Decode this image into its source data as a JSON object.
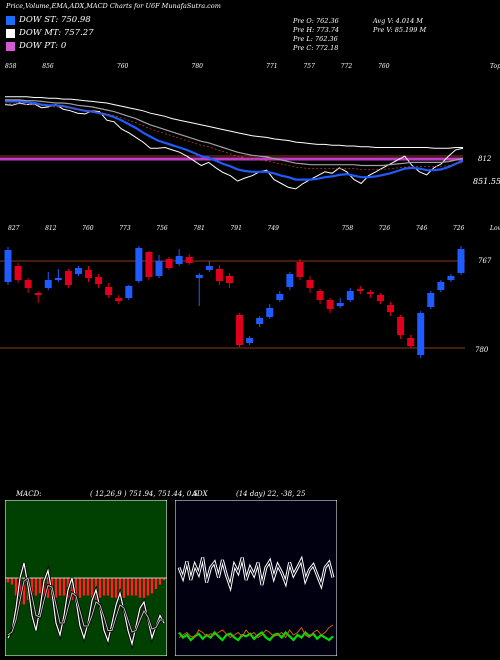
{
  "header": {
    "title": "Price,Volume,EMA,ADX,MACD Charts for U6F MunafaSutra.com"
  },
  "legend": [
    {
      "label": "DOW ST: 750.98",
      "color": "#1a6cff"
    },
    {
      "label": "DOW MT: 757.27",
      "color": "#ffffff"
    },
    {
      "label": "DOW PT: 0",
      "color": "#d45ad4"
    }
  ],
  "ohlc": {
    "open": "Pre  O: 762.36",
    "high": "Pre  H: 773.74",
    "low": "Pre  L: 762.36",
    "close": "Pre  C: 772.18",
    "avg_vol": "Avg V: 4.014  M",
    "pre_vol": "Pre  V: 85.199 M"
  },
  "colors": {
    "up": "#1f5bff",
    "down": "#e0001c",
    "purple": "#c43cc4",
    "brown": "#8b3a1a",
    "green": "#00c400"
  },
  "chart_data": [
    {
      "type": "line",
      "name": "price-ema-panel",
      "top_labels": [
        "858",
        "856",
        "",
        "760",
        "",
        "780",
        "",
        "771",
        "757",
        "772",
        "760",
        "",
        "",
        "Tops"
      ],
      "right_labels": [
        "812",
        "851.55"
      ],
      "series": [
        {
          "name": "close",
          "values": [
            826,
            825,
            828,
            826,
            827,
            822,
            823,
            826,
            820,
            818,
            815,
            814,
            818,
            817,
            806,
            804,
            795,
            790,
            784,
            778,
            770,
            770,
            771,
            768,
            765,
            760,
            754,
            748,
            752,
            745,
            739,
            735,
            728,
            732,
            735,
            740,
            742,
            730,
            725,
            720,
            718,
            725,
            730,
            735,
            740,
            738,
            745,
            740,
            730,
            725,
            735,
            740,
            745,
            750,
            755,
            760,
            748,
            740,
            736,
            745,
            750,
            760,
            768,
            770
          ]
        },
        {
          "name": "ema_fast",
          "values": [
            830,
            830,
            830,
            829,
            828,
            826,
            825,
            825,
            824,
            822,
            820,
            818,
            817,
            815,
            813,
            810,
            806,
            801,
            796,
            790,
            785,
            780,
            777,
            774,
            771,
            768,
            764,
            760,
            758,
            754,
            750,
            747,
            743,
            741,
            740,
            740,
            740,
            738,
            735,
            733,
            730,
            730,
            730,
            731,
            733,
            734,
            736,
            737,
            735,
            733,
            733,
            734,
            736,
            738,
            741,
            744,
            745,
            744,
            742,
            742,
            743,
            746,
            750,
            754
          ]
        },
        {
          "name": "ema_mid",
          "values": [
            832,
            832,
            832,
            831,
            831,
            830,
            829,
            828,
            828,
            827,
            825,
            824,
            823,
            821,
            819,
            817,
            814,
            811,
            808,
            804,
            800,
            797,
            794,
            791,
            788,
            785,
            782,
            779,
            777,
            774,
            771,
            768,
            765,
            763,
            761,
            760,
            759,
            757,
            755,
            753,
            751,
            750,
            749,
            749,
            749,
            749,
            749,
            749,
            749,
            748,
            748,
            748,
            748,
            749,
            750,
            751,
            752,
            752,
            752,
            752,
            752,
            753,
            755,
            757
          ]
        },
        {
          "name": "ema_slow",
          "values": [
            836,
            836,
            836,
            836,
            835,
            835,
            834,
            834,
            833,
            833,
            832,
            831,
            830,
            829,
            828,
            826,
            824,
            822,
            820,
            818,
            815,
            813,
            811,
            808,
            806,
            804,
            802,
            800,
            798,
            796,
            794,
            792,
            790,
            788,
            786,
            785,
            784,
            782,
            781,
            780,
            778,
            777,
            776,
            775,
            775,
            774,
            774,
            773,
            773,
            772,
            772,
            771,
            771,
            771,
            771,
            771,
            771,
            771,
            771,
            770,
            770,
            770,
            771,
            771
          ]
        }
      ],
      "hlines": [
        {
          "name": "DOW PT",
          "value": "812"
        }
      ]
    },
    {
      "type": "candlestick",
      "name": "candles-panel",
      "top_labels": [
        "827",
        "",
        "812",
        "",
        "760",
        "",
        "773",
        "",
        "756",
        "",
        "781",
        "",
        "791",
        "",
        "749",
        "",
        "",
        "",
        "758",
        "",
        "726",
        "",
        "746",
        "",
        "726",
        "",
        "Lows"
      ],
      "right_labels": [
        "767",
        "780"
      ],
      "candles": [
        {
          "o": 806,
          "c": 838,
          "h": 841,
          "l": 803
        },
        {
          "o": 822,
          "c": 808,
          "h": 825,
          "l": 805
        },
        {
          "o": 808,
          "c": 800,
          "h": 810,
          "l": 795
        },
        {
          "o": 795,
          "c": 793,
          "h": 797,
          "l": 785
        },
        {
          "o": 800,
          "c": 808,
          "h": 816,
          "l": 798
        },
        {
          "o": 808,
          "c": 810,
          "h": 819,
          "l": 806
        },
        {
          "o": 817,
          "c": 803,
          "h": 819,
          "l": 800
        },
        {
          "o": 814,
          "c": 820,
          "h": 822,
          "l": 812
        },
        {
          "o": 818,
          "c": 810,
          "h": 822,
          "l": 806
        },
        {
          "o": 811,
          "c": 804,
          "h": 814,
          "l": 800
        },
        {
          "o": 801,
          "c": 793,
          "h": 805,
          "l": 790
        },
        {
          "o": 790,
          "c": 787,
          "h": 793,
          "l": 784
        },
        {
          "o": 790,
          "c": 802,
          "h": 803,
          "l": 788
        },
        {
          "o": 807,
          "c": 840,
          "h": 842,
          "l": 805
        },
        {
          "o": 836,
          "c": 811,
          "h": 837,
          "l": 808
        },
        {
          "o": 812,
          "c": 827,
          "h": 833,
          "l": 810
        },
        {
          "o": 829,
          "c": 820,
          "h": 831,
          "l": 818
        },
        {
          "o": 824,
          "c": 832,
          "h": 839,
          "l": 822
        },
        {
          "o": 831,
          "c": 825,
          "h": 834,
          "l": 823
        },
        {
          "o": 810,
          "c": 813,
          "h": 815,
          "l": 782
        },
        {
          "o": 818,
          "c": 822,
          "h": 827,
          "l": 816
        },
        {
          "o": 819,
          "c": 807,
          "h": 823,
          "l": 803
        },
        {
          "o": 812,
          "c": 805,
          "h": 815,
          "l": 800
        },
        {
          "o": 773,
          "c": 743,
          "h": 775,
          "l": 741
        },
        {
          "o": 745,
          "c": 750,
          "h": 752,
          "l": 743
        },
        {
          "o": 764,
          "c": 770,
          "h": 772,
          "l": 761
        },
        {
          "o": 771,
          "c": 780,
          "h": 784,
          "l": 769
        },
        {
          "o": 788,
          "c": 794,
          "h": 797,
          "l": 786
        },
        {
          "o": 801,
          "c": 814,
          "h": 816,
          "l": 798
        },
        {
          "o": 826,
          "c": 811,
          "h": 829,
          "l": 808
        },
        {
          "o": 808,
          "c": 800,
          "h": 812,
          "l": 795
        },
        {
          "o": 797,
          "c": 788,
          "h": 799,
          "l": 784
        },
        {
          "o": 788,
          "c": 779,
          "h": 790,
          "l": 775
        },
        {
          "o": 782,
          "c": 785,
          "h": 790,
          "l": 780
        },
        {
          "o": 788,
          "c": 797,
          "h": 800,
          "l": 786
        },
        {
          "o": 799,
          "c": 797,
          "h": 802,
          "l": 794
        },
        {
          "o": 796,
          "c": 794,
          "h": 798,
          "l": 790
        },
        {
          "o": 793,
          "c": 787,
          "h": 795,
          "l": 784
        },
        {
          "o": 783,
          "c": 776,
          "h": 786,
          "l": 772
        },
        {
          "o": 771,
          "c": 753,
          "h": 773,
          "l": 749
        },
        {
          "o": 750,
          "c": 742,
          "h": 753,
          "l": 740
        },
        {
          "o": 733,
          "c": 775,
          "h": 777,
          "l": 730
        },
        {
          "o": 781,
          "c": 795,
          "h": 797,
          "l": 779
        },
        {
          "o": 798,
          "c": 806,
          "h": 808,
          "l": 796
        },
        {
          "o": 808,
          "c": 812,
          "h": 814,
          "l": 806
        },
        {
          "o": 815,
          "c": 839,
          "h": 842,
          "l": 813
        }
      ],
      "hlines": [
        {
          "name": "upper",
          "value": "767"
        },
        {
          "name": "lower",
          "value": "780"
        }
      ]
    },
    {
      "type": "line",
      "name": "macd-panel",
      "title": "MACD:",
      "params": "( 12,26,9 ) 751.94,  751.44,  0.5",
      "series": [
        {
          "name": "macd",
          "values": [
            60,
            55,
            40,
            20,
            10,
            25,
            45,
            55,
            40,
            22,
            15,
            30,
            50,
            58,
            45,
            28,
            20,
            35,
            52,
            60,
            50,
            35,
            28,
            40,
            55,
            62,
            50,
            38,
            30,
            42,
            55,
            64,
            52,
            40,
            36,
            48,
            60,
            52,
            45,
            50
          ]
        },
        {
          "name": "signal",
          "values": [
            58,
            56,
            48,
            35,
            22,
            20,
            32,
            45,
            46,
            35,
            25,
            26,
            38,
            50,
            50,
            40,
            30,
            32,
            42,
            52,
            52,
            45,
            36,
            38,
            46,
            55,
            55,
            46,
            38,
            40,
            48,
            56,
            55,
            48,
            42,
            46,
            54,
            53,
            48,
            48
          ]
        },
        {
          "name": "histogram",
          "values": [
            -2,
            -3,
            -8,
            -12,
            -12,
            -10,
            -9,
            -8,
            -7,
            -8,
            -9,
            -10,
            -9,
            -8,
            -8,
            -9,
            -10,
            -9,
            -9,
            -8,
            -8,
            -9,
            -10,
            -9,
            -8,
            -8,
            -9,
            -9,
            -10,
            -9,
            -8,
            -8,
            -8,
            -9,
            -9,
            -8,
            -7,
            -5,
            -3,
            -1
          ]
        }
      ]
    },
    {
      "type": "line",
      "name": "adx-panel",
      "title": "ADX",
      "params": "(14 day) 22,  -38,  25",
      "series": [
        {
          "name": "adx",
          "values": [
            30,
            38,
            25,
            40,
            28,
            35,
            22,
            42,
            30,
            26,
            38,
            24,
            36,
            45,
            28,
            34,
            22,
            40,
            30,
            36,
            26,
            44,
            30,
            25,
            38,
            28,
            34,
            42,
            26,
            36,
            30,
            24,
            40,
            32,
            28,
            36,
            44,
            30,
            26,
            38
          ]
        },
        {
          "name": "plus_di",
          "values": [
            82,
            86,
            84,
            88,
            85,
            83,
            87,
            84,
            86,
            82,
            85,
            88,
            84,
            83,
            86,
            88,
            84,
            85,
            83,
            87,
            84,
            82,
            86,
            88,
            84,
            83,
            86,
            82,
            85,
            88,
            84,
            86,
            82,
            85,
            83,
            87,
            84,
            86,
            88,
            85
          ]
        },
        {
          "name": "minus_di",
          "values": [
            86,
            84,
            82,
            85,
            86,
            80,
            82,
            85,
            83,
            84,
            82,
            80,
            83,
            86,
            84,
            82,
            85,
            80,
            84,
            82,
            86,
            84,
            80,
            82,
            85,
            84,
            82,
            86,
            80,
            84,
            82,
            78,
            84,
            86,
            82,
            80,
            84,
            82,
            78,
            76
          ]
        }
      ]
    }
  ]
}
